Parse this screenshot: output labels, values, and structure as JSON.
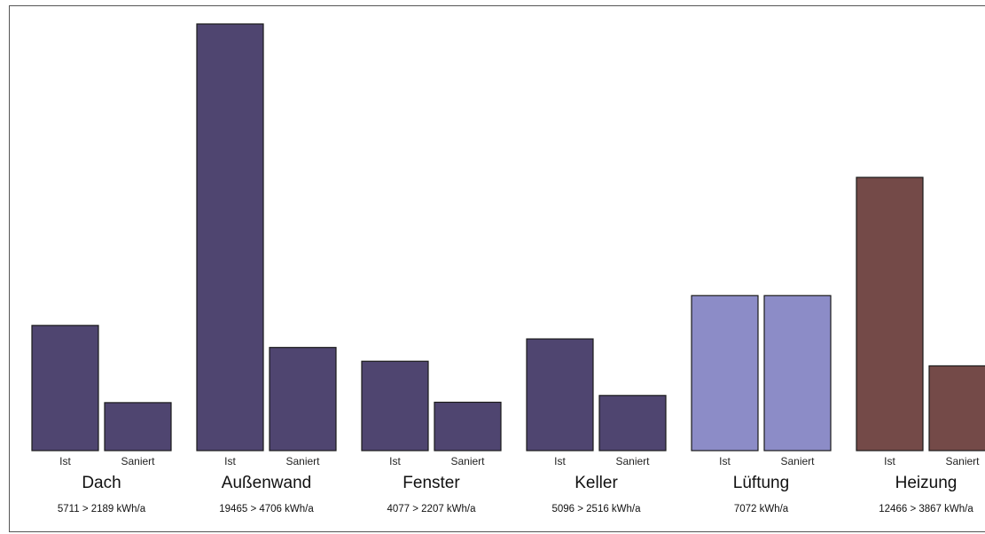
{
  "chart_data": {
    "type": "bar",
    "unit": "kWh/a",
    "bar_labels": [
      "Ist",
      "Saniert"
    ],
    "ylim": [
      0,
      19465
    ],
    "groups": [
      {
        "category": "Dach",
        "ist": 5711,
        "saniert": 2189,
        "label": "5711 > 2189 kWh/a",
        "color": "#4f4570"
      },
      {
        "category": "Außenwand",
        "ist": 19465,
        "saniert": 4706,
        "label": "19465 > 4706 kWh/a",
        "color": "#4f4570"
      },
      {
        "category": "Fenster",
        "ist": 4077,
        "saniert": 2207,
        "label": "4077 > 2207 kWh/a",
        "color": "#4f4570"
      },
      {
        "category": "Keller",
        "ist": 5096,
        "saniert": 2516,
        "label": "5096 > 2516 kWh/a",
        "color": "#4f4570"
      },
      {
        "category": "Lüftung",
        "ist": 7072,
        "saniert": 7072,
        "label": "7072 kWh/a",
        "color": "#8c8cc7"
      },
      {
        "category": "Heizung",
        "ist": 12466,
        "saniert": 3867,
        "label": "12466 > 3867 kWh/a",
        "color": "#744a48"
      }
    ]
  }
}
